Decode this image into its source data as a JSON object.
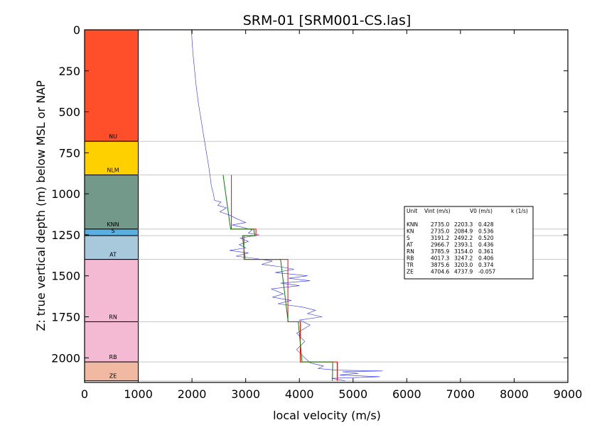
{
  "chart_data": {
    "type": "line",
    "title": "SRM-01 [SRM001-CS.las]",
    "xlabel": "local velocity (m/s)",
    "ylabel": "Z: true vertical depth (m) below MSL or NAP",
    "xlim": [
      0,
      9000
    ],
    "ylim": [
      2150,
      0
    ],
    "x_ticks": [
      "0",
      "1000",
      "2000",
      "3000",
      "4000",
      "5000",
      "6000",
      "7000",
      "8000",
      "9000"
    ],
    "y_ticks": [
      "0",
      "250",
      "500",
      "750",
      "1000",
      "1250",
      "1500",
      "1750",
      "2000"
    ],
    "y_inverted": true,
    "grid": "horizontal lines at unit boundaries",
    "units": [
      {
        "name": "NU",
        "top": 0,
        "base": 680,
        "color": "#ff4f2a"
      },
      {
        "name": "NLM",
        "top": 680,
        "base": 885,
        "color": "#ffd000"
      },
      {
        "name": "KNN",
        "top": 885,
        "base": 1215,
        "color": "#72998a"
      },
      {
        "name": "S",
        "top": 1215,
        "base": 1255,
        "color": "#5aaee0"
      },
      {
        "name": "AT",
        "top": 1255,
        "base": 1400,
        "color": "#a8c8dc"
      },
      {
        "name": "RN",
        "top": 1400,
        "base": 1780,
        "color": "#f4b9d3"
      },
      {
        "name": "RB",
        "top": 1780,
        "base": 2025,
        "color": "#f4b9d3"
      },
      {
        "name": "ZE",
        "top": 2025,
        "base": 2140,
        "color": "#f2b9a2"
      }
    ],
    "series": [
      {
        "color": "#2c2cff",
        "style": "thin",
        "points": [
          [
            1990,
            0
          ],
          [
            2000,
            60
          ],
          [
            2020,
            150
          ],
          [
            2050,
            250
          ],
          [
            2080,
            350
          ],
          [
            2120,
            450
          ],
          [
            2170,
            550
          ],
          [
            2220,
            650
          ],
          [
            2270,
            750
          ],
          [
            2320,
            850
          ],
          [
            2360,
            950
          ],
          [
            2400,
            1000
          ],
          [
            2420,
            1040
          ],
          [
            2540,
            1050
          ],
          [
            2480,
            1070
          ],
          [
            2640,
            1085
          ],
          [
            2520,
            1110
          ],
          [
            2700,
            1130
          ],
          [
            2820,
            1150
          ],
          [
            3000,
            1175
          ],
          [
            2750,
            1190
          ],
          [
            2950,
            1205
          ],
          [
            3120,
            1220
          ],
          [
            3050,
            1240
          ],
          [
            3250,
            1250
          ],
          [
            2900,
            1270
          ],
          [
            3050,
            1290
          ],
          [
            2880,
            1310
          ],
          [
            3000,
            1330
          ],
          [
            2700,
            1345
          ],
          [
            3050,
            1360
          ],
          [
            2820,
            1380
          ],
          [
            3200,
            1395
          ],
          [
            3500,
            1410
          ],
          [
            3300,
            1430
          ],
          [
            3650,
            1445
          ],
          [
            3900,
            1460
          ],
          [
            3550,
            1480
          ],
          [
            4150,
            1500
          ],
          [
            3800,
            1515
          ],
          [
            4200,
            1530
          ],
          [
            3650,
            1545
          ],
          [
            4000,
            1560
          ],
          [
            3480,
            1580
          ],
          [
            3700,
            1610
          ],
          [
            3500,
            1630
          ],
          [
            3850,
            1650
          ],
          [
            3600,
            1670
          ],
          [
            4050,
            1690
          ],
          [
            4300,
            1710
          ],
          [
            4150,
            1730
          ],
          [
            4420,
            1750
          ],
          [
            4000,
            1770
          ],
          [
            4200,
            1800
          ],
          [
            3950,
            1850
          ],
          [
            4100,
            1900
          ],
          [
            3950,
            1950
          ],
          [
            4100,
            2000
          ],
          [
            4200,
            2030
          ],
          [
            4450,
            2050
          ],
          [
            4350,
            2065
          ],
          [
            4700,
            2075
          ],
          [
            5550,
            2080
          ],
          [
            4800,
            2085
          ],
          [
            5100,
            2095
          ],
          [
            4750,
            2105
          ],
          [
            5500,
            2115
          ],
          [
            4600,
            2125
          ],
          [
            4850,
            2140
          ]
        ]
      },
      {
        "color": "#ff0000",
        "style": "step",
        "points": [
          [
            2735,
            885
          ],
          [
            2735,
            1215
          ],
          [
            3191,
            1215
          ],
          [
            3191,
            1255
          ],
          [
            2967,
            1255
          ],
          [
            2967,
            1400
          ],
          [
            3786,
            1400
          ],
          [
            3786,
            1780
          ],
          [
            4017,
            1780
          ],
          [
            4017,
            2025
          ],
          [
            4705,
            2025
          ],
          [
            4705,
            2140
          ]
        ]
      },
      {
        "color": "#008000",
        "style": "gradient",
        "points": [
          [
            2580,
            885
          ],
          [
            2720,
            1215
          ],
          [
            3150,
            1215
          ],
          [
            3170,
            1255
          ],
          [
            2940,
            1255
          ],
          [
            2990,
            1400
          ],
          [
            3650,
            1400
          ],
          [
            3790,
            1780
          ],
          [
            3980,
            1780
          ],
          [
            4050,
            2025
          ],
          [
            4620,
            2025
          ],
          [
            4615,
            2140
          ]
        ]
      }
    ],
    "legend": {
      "placement": "right",
      "headers": [
        "Unit",
        "Vint (m/s)",
        "V0 (m/s)",
        "k (1/s)"
      ],
      "rows": [
        [
          "KNN",
          "2735.0",
          "2203.3",
          "0.428"
        ],
        [
          "KN",
          "2735.0",
          "2084.9",
          "0.536"
        ],
        [
          "S",
          "3191.2",
          "2492.2",
          "0.520"
        ],
        [
          "AT",
          "2966.7",
          "2393.1",
          "0.436"
        ],
        [
          "RN",
          "3785.9",
          "3154.0",
          "0.361"
        ],
        [
          "RB",
          "4017.3",
          "3247.2",
          "0.406"
        ],
        [
          "TR",
          "3875.6",
          "3203.0",
          "0.374"
        ],
        [
          "ZE",
          "4704.6",
          "4737.9",
          "-0.057"
        ]
      ]
    }
  }
}
